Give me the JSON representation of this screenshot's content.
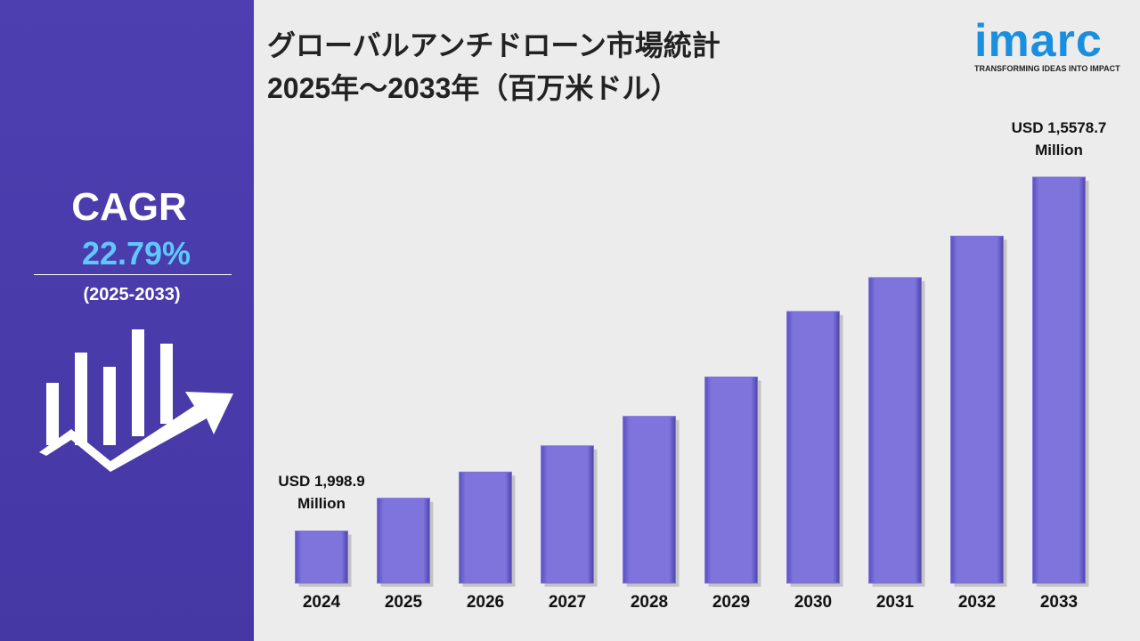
{
  "chart_data": {
    "type": "bar",
    "title": "グローバルアンチドローン市場統計",
    "subtitle": "2025年～2033年（百万米ドル）",
    "categories": [
      "2024",
      "2025",
      "2026",
      "2027",
      "2028",
      "2029",
      "2030",
      "2031",
      "2032",
      "2033"
    ],
    "values": [
      1998.9,
      3257,
      4262,
      5268,
      6399,
      7908,
      10423,
      11722,
      13314,
      15578.7
    ],
    "value_labels": [
      "USD 1,998.9 Million",
      null,
      null,
      null,
      null,
      null,
      null,
      null,
      null,
      "USD 1,5578.7 Million"
    ],
    "color": "#7b70d9"
  },
  "sidebar": {
    "label": "CAGR",
    "value": "22.79%",
    "period": "(2025-2033)"
  },
  "logo": {
    "name": "imarc",
    "tagline": "TRANSFORMING IDEAS INTO IMPACT"
  }
}
